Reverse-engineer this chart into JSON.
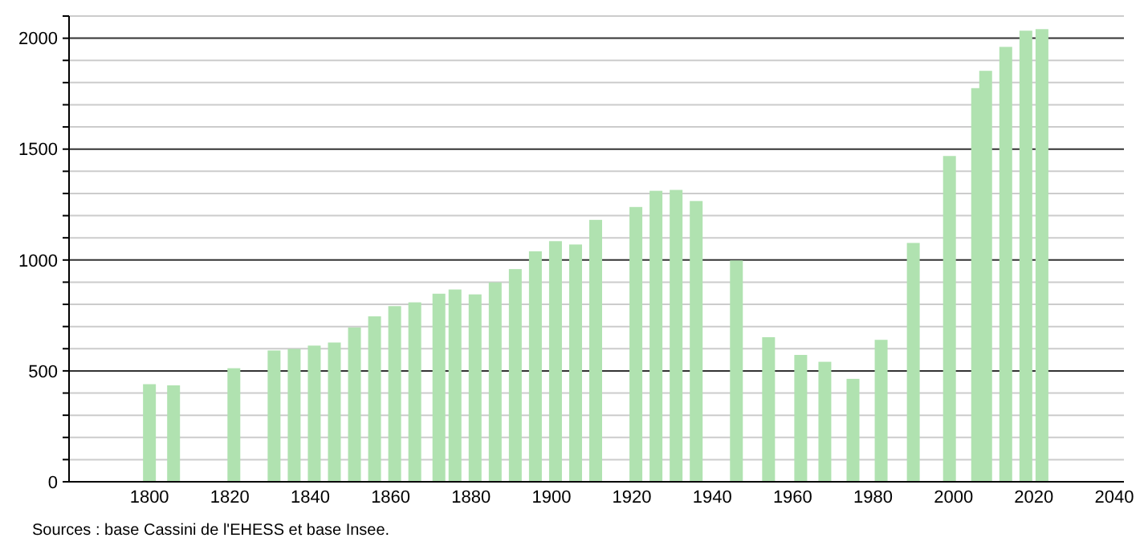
{
  "chart_data": {
    "type": "bar",
    "color": "#b0e2b0",
    "x": [
      1800,
      1806,
      1821,
      1831,
      1836,
      1841,
      1846,
      1851,
      1856,
      1861,
      1866,
      1872,
      1876,
      1881,
      1886,
      1891,
      1896,
      1901,
      1906,
      1911,
      1921,
      1926,
      1931,
      1936,
      1946,
      1954,
      1962,
      1968,
      1975,
      1982,
      1990,
      1999,
      2006,
      2008,
      2013,
      2018,
      2022
    ],
    "values": [
      440,
      435,
      512,
      592,
      599,
      614,
      628,
      696,
      746,
      792,
      809,
      848,
      867,
      845,
      899,
      959,
      1039,
      1085,
      1070,
      1181,
      1239,
      1312,
      1316,
      1266,
      998,
      652,
      572,
      541,
      464,
      640,
      1077,
      1469,
      1775,
      1853,
      1961,
      2034,
      2041
    ],
    "xlim": [
      1780,
      2040
    ],
    "xticks": [
      1800,
      1820,
      1840,
      1860,
      1880,
      1900,
      1920,
      1940,
      1960,
      1980,
      2000,
      2020,
      2040
    ],
    "ylim": [
      0,
      2100
    ],
    "yticks": [
      0,
      {
        "value": 100,
        "label": null
      },
      {
        "value": 200,
        "label": null
      },
      {
        "value": 300,
        "label": null
      },
      {
        "value": 400,
        "label": null
      },
      500,
      {
        "value": 600,
        "label": null
      },
      {
        "value": 700,
        "label": null
      },
      {
        "value": 800,
        "label": null
      },
      {
        "value": 900,
        "label": null
      },
      1000,
      {
        "value": 1100,
        "label": null
      },
      {
        "value": 1200,
        "label": null
      },
      {
        "value": 1300,
        "label": null
      },
      {
        "value": 1400,
        "label": null
      },
      1500,
      {
        "value": 1600,
        "label": null
      },
      {
        "value": 1700,
        "label": null
      },
      {
        "value": 1800,
        "label": null
      },
      {
        "value": 1900,
        "label": null
      },
      2000,
      {
        "value": 2100,
        "label": null
      }
    ],
    "grid": "y",
    "annotations": [
      "Sources : base Cassini de l'EHESS et base Insee."
    ]
  }
}
